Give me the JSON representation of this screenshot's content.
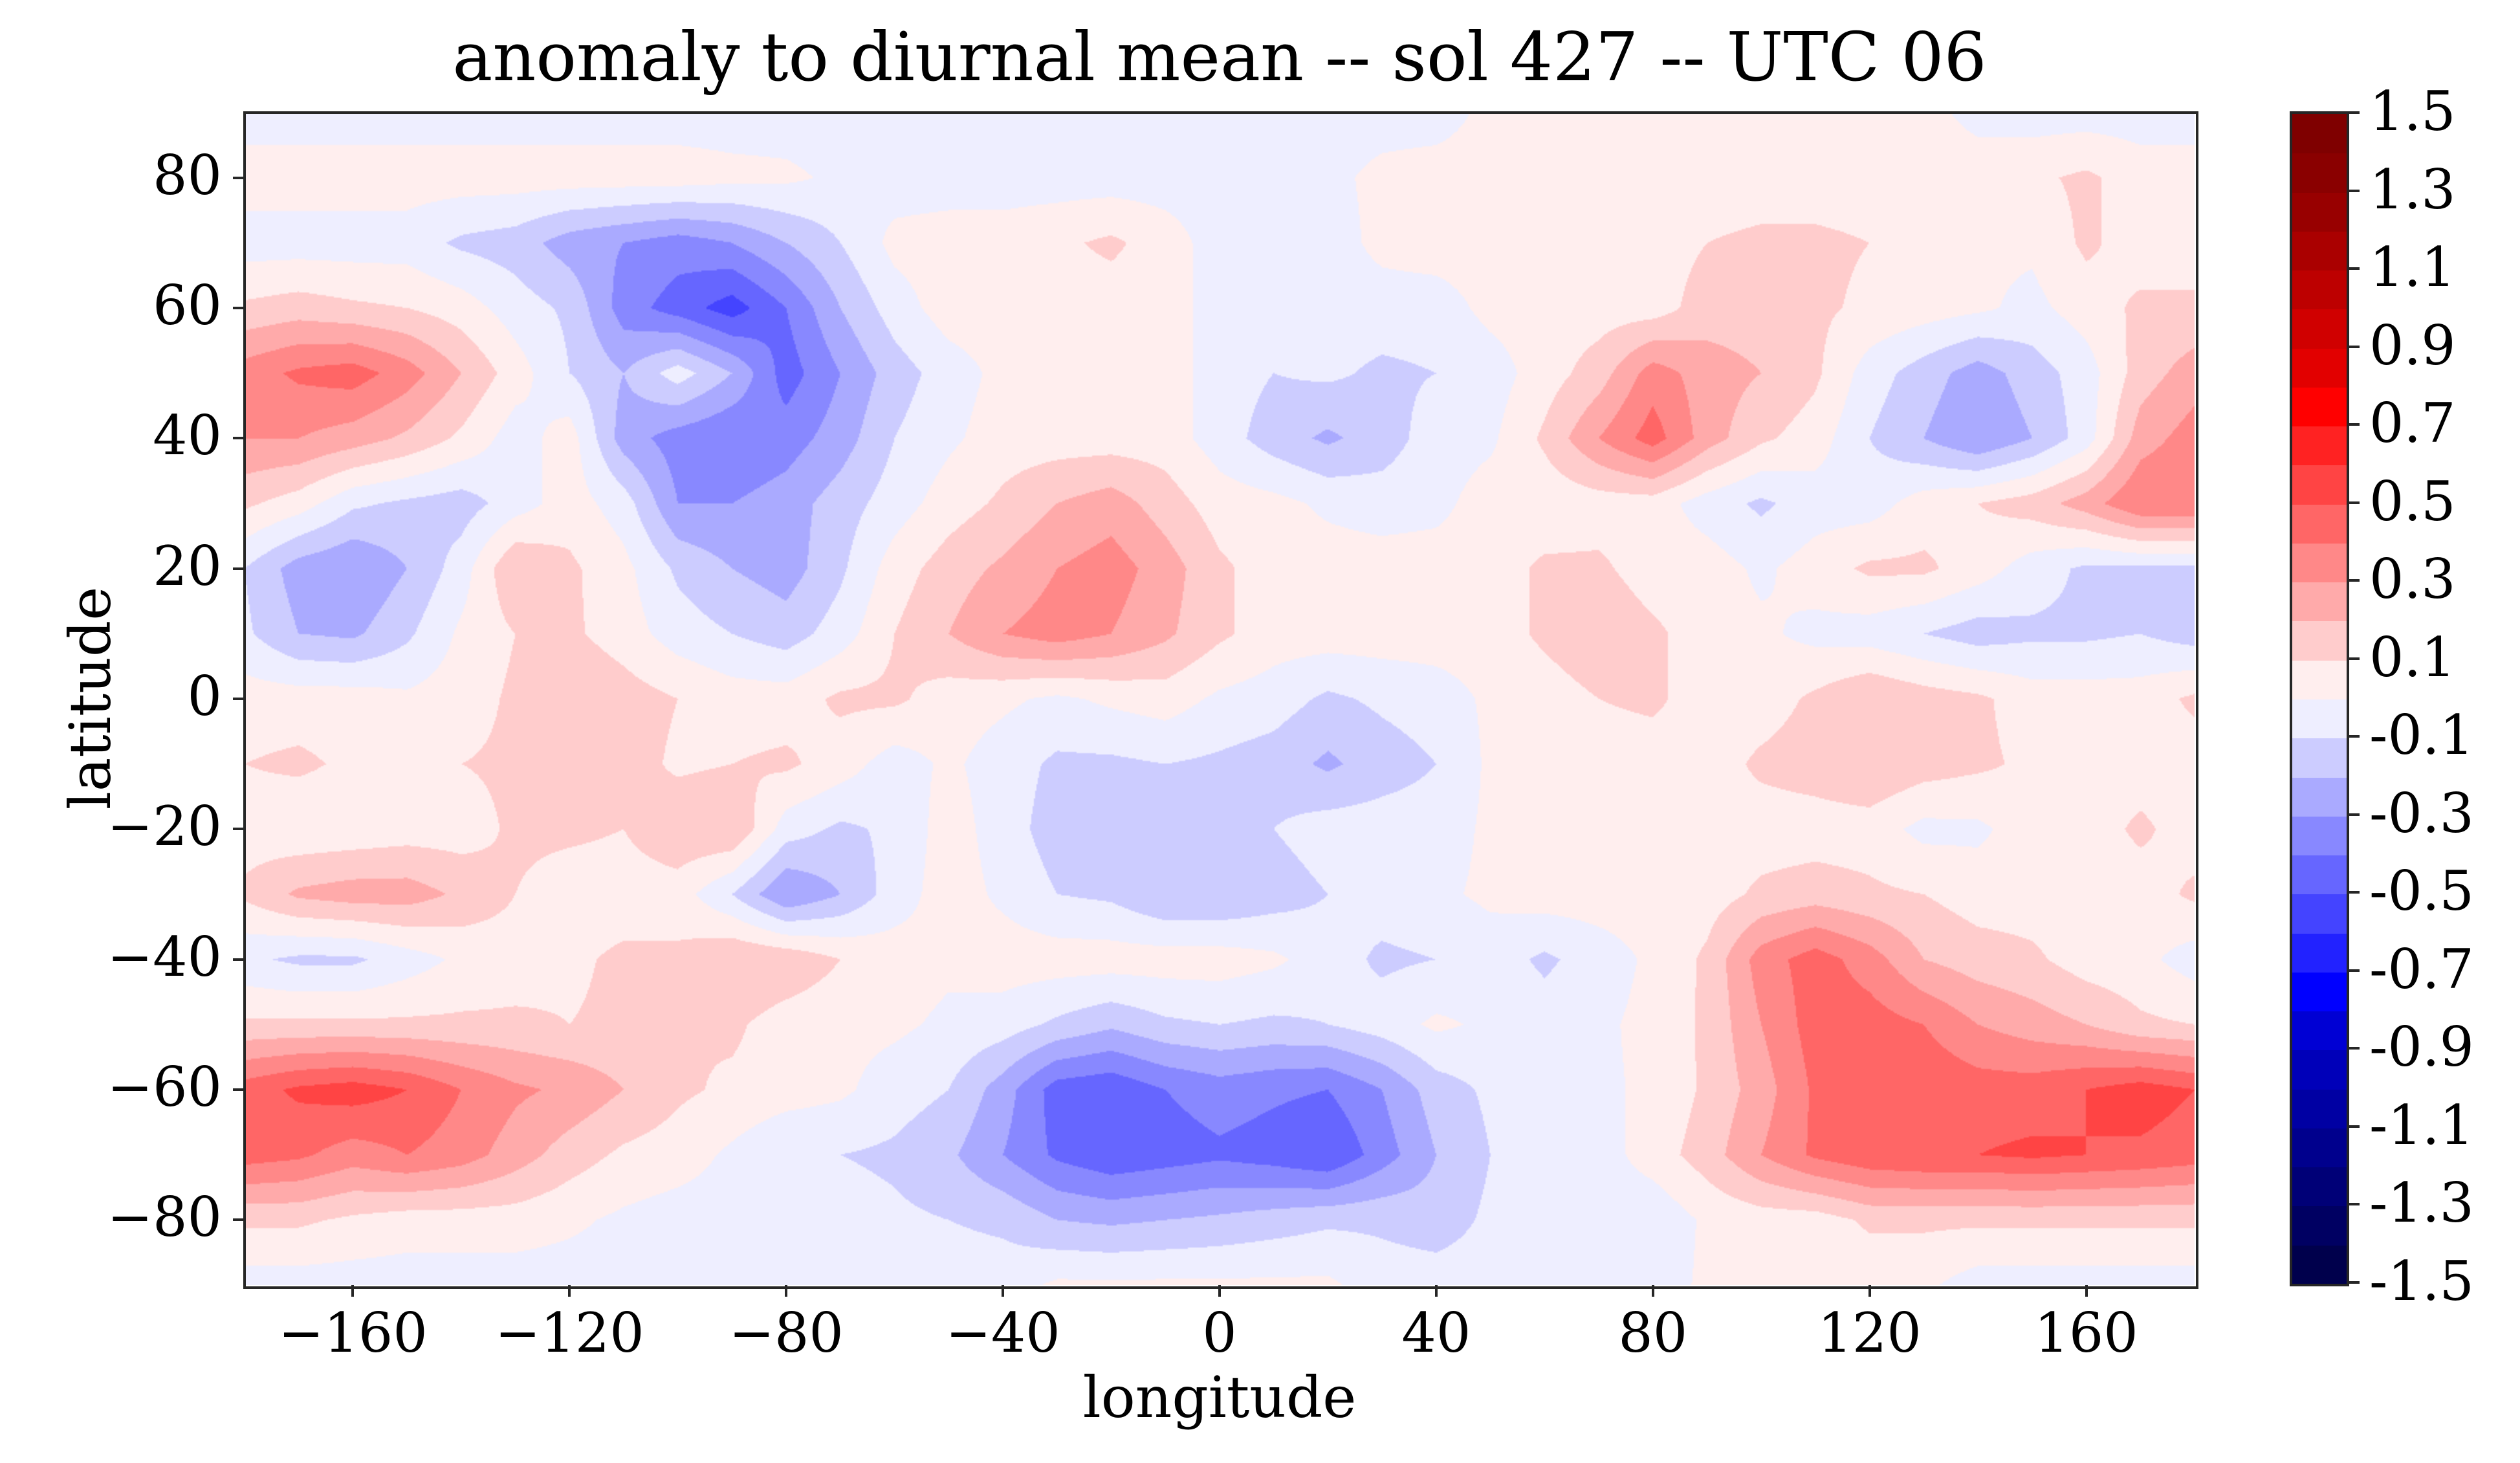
{
  "chart_data": {
    "type": "heatmap",
    "subtype": "filled-contour",
    "title": "anomaly to diurnal mean -- sol 427 -- UTC 06",
    "xlabel": "longitude",
    "ylabel": "latitude",
    "xlim": [
      -180,
      180
    ],
    "ylim": [
      -90,
      90
    ],
    "xticks": [
      -160,
      -120,
      -80,
      -40,
      0,
      40,
      80,
      120,
      160
    ],
    "xtick_labels": [
      "−160",
      "−120",
      "−80",
      "−40",
      "0",
      "40",
      "80",
      "120",
      "160"
    ],
    "yticks": [
      80,
      60,
      40,
      20,
      0,
      -20,
      -40,
      -60,
      -80
    ],
    "ytick_labels": [
      "80",
      "60",
      "40",
      "20",
      "0",
      "−20",
      "−40",
      "−60",
      "−80"
    ],
    "grid": false,
    "colormap": "seismic",
    "levels": {
      "min": -1.5,
      "max": 1.5,
      "step": 0.1
    },
    "colorbar": {
      "placement": "right",
      "ticks": [
        1.5,
        1.3,
        1.1,
        0.9,
        0.7,
        0.5,
        0.3,
        0.1,
        -0.1,
        -0.3,
        -0.5,
        -0.7,
        -0.9,
        -1.1,
        -1.3,
        -1.5
      ],
      "tick_labels": [
        "1.5",
        "1.3",
        "1.1",
        "0.9",
        "0.7",
        "0.5",
        "0.3",
        "0.1",
        "-0.1",
        "-0.3",
        "-0.5",
        "-0.7",
        "-0.9",
        "-1.1",
        "-1.3",
        "-1.5"
      ],
      "band_colors_low_to_high": [
        "#00004c",
        "#000062",
        "#000077",
        "#00008d",
        "#0000a3",
        "#0000b9",
        "#0000d4",
        "#0000ff",
        "#2222ff",
        "#4444ff",
        "#6666ff",
        "#8888ff",
        "#aaaaff",
        "#ccccff",
        "#eeeeff",
        "#ffeeee",
        "#ffcccc",
        "#ffaaaa",
        "#ff8888",
        "#ff6666",
        "#ff4444",
        "#ff2222",
        "#ff0000",
        "#e20000",
        "#d00000",
        "#bd0000",
        "#aa0000",
        "#980000",
        "#8a0000",
        "#7f0000"
      ]
    },
    "grid_lon": [
      -180,
      -170,
      -160,
      -150,
      -140,
      -130,
      -120,
      -110,
      -100,
      -90,
      -80,
      -70,
      -60,
      -50,
      -40,
      -30,
      -20,
      -10,
      0,
      10,
      20,
      30,
      40,
      50,
      60,
      70,
      80,
      90,
      100,
      110,
      120,
      130,
      140,
      150,
      160,
      170,
      180
    ],
    "grid_lat": [
      90,
      80,
      70,
      60,
      50,
      40,
      30,
      20,
      10,
      0,
      -10,
      -20,
      -30,
      -40,
      -50,
      -60,
      -70,
      -80,
      -90
    ],
    "values": [
      [
        -0.05,
        -0.05,
        -0.05,
        -0.05,
        -0.05,
        -0.05,
        -0.05,
        -0.05,
        -0.05,
        -0.05,
        -0.05,
        -0.05,
        -0.05,
        -0.05,
        -0.05,
        -0.05,
        -0.05,
        -0.05,
        -0.05,
        -0.05,
        -0.05,
        -0.05,
        -0.05,
        0.03,
        0.05,
        0.05,
        0.05,
        0.05,
        0.05,
        0.05,
        0.05,
        0.03,
        -0.03,
        -0.05,
        -0.05,
        -0.05,
        -0.05
      ],
      [
        0.05,
        0.05,
        0.05,
        0.05,
        0.05,
        0.05,
        0.05,
        0.05,
        0.05,
        0.03,
        0.02,
        -0.02,
        -0.05,
        -0.05,
        -0.05,
        -0.05,
        -0.05,
        -0.05,
        -0.05,
        -0.05,
        -0.03,
        0.03,
        0.05,
        0.05,
        0.05,
        0.05,
        0.05,
        0.05,
        0.05,
        0.05,
        0.05,
        0.05,
        0.05,
        0.08,
        0.12,
        0.05,
        0.05
      ],
      [
        -0.05,
        -0.05,
        -0.05,
        -0.05,
        -0.12,
        -0.15,
        -0.25,
        -0.3,
        -0.35,
        -0.3,
        -0.2,
        -0.1,
        0.03,
        0.05,
        0.05,
        0.08,
        0.12,
        0.05,
        -0.05,
        -0.1,
        -0.05,
        0.03,
        0.05,
        0.05,
        0.05,
        0.05,
        0.05,
        0.1,
        0.12,
        0.12,
        0.1,
        0.05,
        0.02,
        0.02,
        0.12,
        0.05,
        0.05
      ],
      [
        0.12,
        0.15,
        0.12,
        0.1,
        0.05,
        -0.05,
        -0.12,
        -0.35,
        -0.45,
        -0.55,
        -0.4,
        -0.2,
        -0.05,
        0.05,
        0.05,
        0.05,
        0.05,
        0.05,
        -0.05,
        -0.05,
        -0.05,
        -0.05,
        -0.05,
        0.03,
        0.05,
        0.05,
        0.05,
        0.15,
        0.15,
        0.12,
        0.08,
        0.05,
        0.02,
        -0.03,
        0.05,
        0.12,
        0.12
      ],
      [
        0.35,
        0.42,
        0.45,
        0.35,
        0.2,
        0.05,
        -0.1,
        -0.2,
        -0.05,
        -0.2,
        -0.45,
        -0.3,
        -0.15,
        -0.05,
        0.03,
        0.05,
        0.05,
        0.05,
        -0.05,
        -0.1,
        -0.08,
        -0.12,
        -0.1,
        -0.05,
        0.05,
        0.15,
        0.35,
        0.25,
        0.2,
        0.12,
        -0.05,
        -0.15,
        -0.25,
        -0.15,
        -0.05,
        0.15,
        0.25
      ],
      [
        0.3,
        0.3,
        0.25,
        0.18,
        0.08,
        -0.05,
        0.05,
        -0.25,
        -0.35,
        -0.4,
        -0.35,
        -0.25,
        -0.1,
        -0.02,
        0.05,
        0.05,
        0.05,
        0.05,
        -0.05,
        -0.15,
        -0.22,
        -0.15,
        -0.05,
        -0.02,
        0.12,
        0.3,
        0.45,
        0.25,
        0.12,
        0.05,
        -0.1,
        -0.2,
        -0.3,
        -0.2,
        -0.05,
        0.25,
        0.35
      ],
      [
        0.12,
        0.05,
        -0.08,
        -0.12,
        -0.15,
        -0.05,
        0.05,
        -0.05,
        -0.3,
        -0.3,
        -0.25,
        -0.15,
        -0.05,
        0.05,
        0.12,
        0.2,
        0.25,
        0.15,
        0.05,
        0.03,
        -0.02,
        -0.05,
        -0.03,
        0.05,
        0.03,
        0.05,
        0.05,
        -0.05,
        -0.12,
        -0.05,
        -0.05,
        0.05,
        0.1,
        0.15,
        0.25,
        0.4,
        0.4
      ],
      [
        -0.1,
        -0.25,
        -0.3,
        -0.2,
        -0.05,
        0.2,
        0.12,
        0.03,
        -0.12,
        -0.2,
        -0.25,
        -0.12,
        0.05,
        0.15,
        0.22,
        0.3,
        0.35,
        0.25,
        0.12,
        0.05,
        0.05,
        0.05,
        0.05,
        0.05,
        0.12,
        0.12,
        0.05,
        0.05,
        -0.02,
        0.05,
        0.12,
        0.12,
        0.05,
        -0.05,
        -0.12,
        -0.12,
        -0.12
      ],
      [
        -0.08,
        -0.2,
        -0.22,
        -0.12,
        0.02,
        0.1,
        0.12,
        0.05,
        -0.05,
        -0.1,
        -0.15,
        -0.05,
        0.1,
        0.2,
        0.3,
        0.35,
        0.3,
        0.22,
        0.12,
        0.05,
        0.05,
        0.05,
        0.05,
        0.05,
        0.12,
        0.18,
        0.12,
        0.05,
        0.02,
        -0.03,
        -0.05,
        -0.1,
        -0.15,
        -0.12,
        -0.12,
        -0.1,
        -0.15
      ],
      [
        0.05,
        0.05,
        0.05,
        0.02,
        0.05,
        0.12,
        0.2,
        0.15,
        0.1,
        0.05,
        0.05,
        0.12,
        0.12,
        0.05,
        0.02,
        -0.02,
        0.02,
        0.05,
        -0.02,
        -0.05,
        -0.12,
        -0.08,
        -0.05,
        0.02,
        0.05,
        0.1,
        0.12,
        0.05,
        0.05,
        0.12,
        0.2,
        0.15,
        0.12,
        0.05,
        0.05,
        0.05,
        0.12
      ],
      [
        0.1,
        0.12,
        0.08,
        0.05,
        0.1,
        0.12,
        0.2,
        0.15,
        0.08,
        0.1,
        0.12,
        0.05,
        -0.05,
        0.02,
        -0.05,
        -0.12,
        -0.12,
        -0.1,
        -0.12,
        -0.15,
        -0.22,
        -0.15,
        -0.1,
        0.02,
        0.05,
        0.05,
        0.05,
        0.05,
        0.12,
        0.15,
        0.2,
        0.15,
        0.12,
        0.08,
        0.05,
        0.05,
        0.05
      ],
      [
        0.05,
        0.02,
        0.03,
        0.05,
        0.05,
        0.12,
        0.12,
        0.1,
        0.18,
        0.2,
        -0.05,
        -0.12,
        -0.08,
        0.05,
        -0.05,
        -0.15,
        -0.15,
        -0.1,
        -0.12,
        -0.1,
        -0.05,
        -0.05,
        -0.05,
        0.02,
        0.05,
        0.05,
        0.05,
        0.08,
        0.05,
        0.05,
        0.05,
        -0.03,
        -0.02,
        0.05,
        0.05,
        0.12,
        0.05
      ],
      [
        0.12,
        0.22,
        0.25,
        0.25,
        0.18,
        0.1,
        0.05,
        0.05,
        0.05,
        -0.1,
        -0.3,
        -0.2,
        -0.05,
        0.05,
        -0.02,
        -0.1,
        -0.12,
        -0.2,
        -0.2,
        -0.15,
        -0.1,
        -0.05,
        -0.02,
        0.02,
        0.05,
        0.05,
        0.05,
        0.05,
        0.12,
        0.15,
        0.12,
        0.1,
        0.05,
        0.05,
        0.05,
        0.05,
        0.12
      ],
      [
        -0.08,
        -0.12,
        -0.12,
        -0.05,
        0.02,
        0.05,
        0.08,
        0.12,
        0.12,
        0.2,
        0.18,
        0.1,
        0.05,
        0.02,
        0.05,
        0.05,
        0.05,
        0.05,
        0.05,
        0.02,
        -0.05,
        -0.12,
        -0.1,
        -0.05,
        -0.12,
        -0.05,
        0.02,
        0.12,
        0.35,
        0.45,
        0.35,
        0.2,
        0.15,
        0.12,
        0.05,
        0.03,
        -0.05
      ],
      [
        0.12,
        0.12,
        0.12,
        0.12,
        0.12,
        0.12,
        0.1,
        0.12,
        0.1,
        0.12,
        0.05,
        0.03,
        0.02,
        -0.02,
        -0.05,
        -0.12,
        -0.18,
        -0.12,
        -0.1,
        -0.12,
        -0.1,
        -0.05,
        0.02,
        -0.02,
        -0.05,
        -0.02,
        0.03,
        0.12,
        0.3,
        0.45,
        0.45,
        0.4,
        0.3,
        0.25,
        0.2,
        0.12,
        0.1
      ],
      [
        0.45,
        0.52,
        0.55,
        0.5,
        0.4,
        0.32,
        0.28,
        0.2,
        0.12,
        0.08,
        0.05,
        0.02,
        -0.05,
        -0.1,
        -0.25,
        -0.45,
        -0.48,
        -0.4,
        -0.35,
        -0.38,
        -0.4,
        -0.3,
        -0.15,
        -0.08,
        -0.05,
        -0.02,
        0.02,
        0.12,
        0.25,
        0.42,
        0.48,
        0.48,
        0.45,
        0.45,
        0.5,
        0.55,
        0.5
      ],
      [
        0.45,
        0.42,
        0.35,
        0.4,
        0.35,
        0.25,
        0.15,
        0.08,
        0.05,
        -0.02,
        -0.1,
        -0.1,
        -0.12,
        -0.18,
        -0.3,
        -0.42,
        -0.48,
        -0.45,
        -0.42,
        -0.45,
        -0.5,
        -0.35,
        -0.2,
        -0.1,
        -0.05,
        -0.05,
        0.05,
        0.15,
        0.3,
        0.42,
        0.48,
        0.5,
        0.5,
        0.52,
        0.5,
        0.48,
        0.45
      ],
      [
        0.12,
        0.12,
        0.08,
        0.05,
        0.05,
        0.05,
        0.02,
        -0.02,
        -0.05,
        -0.05,
        -0.05,
        -0.05,
        -0.08,
        -0.1,
        -0.12,
        -0.2,
        -0.22,
        -0.2,
        -0.18,
        -0.15,
        -0.12,
        -0.12,
        -0.15,
        -0.08,
        -0.05,
        -0.05,
        -0.08,
        0.02,
        0.05,
        0.05,
        0.12,
        0.12,
        0.12,
        0.12,
        0.12,
        0.12,
        0.12
      ],
      [
        -0.05,
        -0.05,
        -0.05,
        -0.05,
        -0.05,
        -0.05,
        -0.05,
        -0.05,
        -0.05,
        -0.05,
        -0.05,
        -0.05,
        -0.05,
        -0.05,
        -0.05,
        0.02,
        0.02,
        0.02,
        0.02,
        0.02,
        0.02,
        -0.05,
        -0.05,
        -0.05,
        -0.05,
        -0.05,
        -0.05,
        0.02,
        0.02,
        0.02,
        0.02,
        0.02,
        -0.05,
        -0.05,
        -0.05,
        -0.05,
        -0.05
      ]
    ]
  }
}
